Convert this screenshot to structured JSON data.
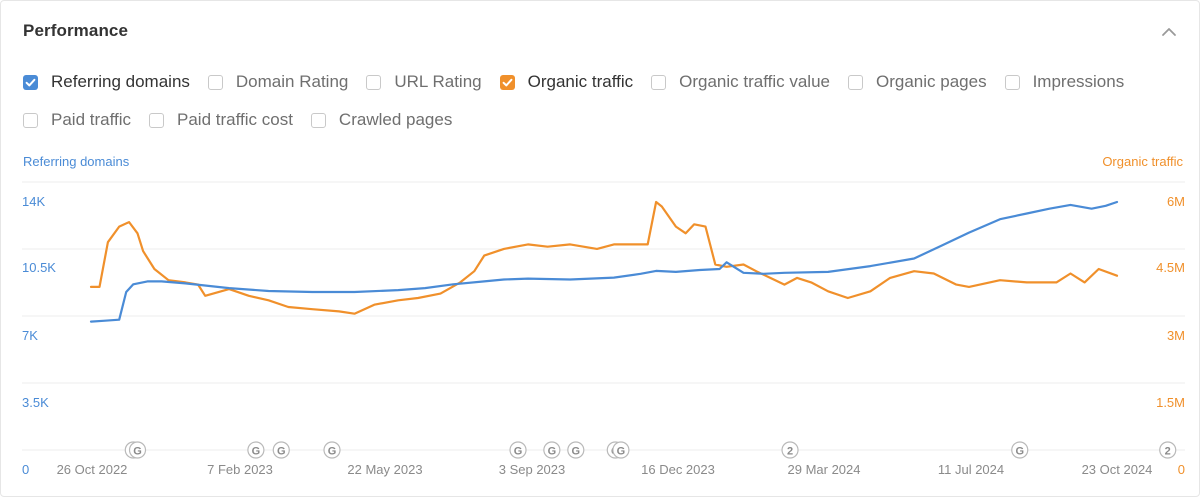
{
  "header": {
    "title": "Performance"
  },
  "metrics_row1": [
    {
      "label": "Referring domains",
      "checked": true,
      "color": "#4a8bd6"
    },
    {
      "label": "Domain Rating",
      "checked": false
    },
    {
      "label": "URL Rating",
      "checked": false
    },
    {
      "label": "Organic traffic",
      "checked": true,
      "color": "#f0902b"
    },
    {
      "label": "Organic traffic value",
      "checked": false
    },
    {
      "label": "Organic pages",
      "checked": false
    },
    {
      "label": "Impressions",
      "checked": false
    }
  ],
  "metrics_row2": [
    {
      "label": "Paid traffic",
      "checked": false
    },
    {
      "label": "Paid traffic cost",
      "checked": false
    },
    {
      "label": "Crawled pages",
      "checked": false
    }
  ],
  "chart_data": {
    "type": "line",
    "grid": true,
    "x_ticks": [
      "26 Oct 2022",
      "7 Feb 2023",
      "22 May 2023",
      "3 Sep 2023",
      "16 Dec 2023",
      "29 Mar 2024",
      "11 Jul 2024",
      "23 Oct 2024"
    ],
    "y_left": {
      "label": "Referring domains",
      "color": "#4a8bd6",
      "ticks": [
        "0",
        "3.5K",
        "7K",
        "10.5K",
        "14K"
      ],
      "range": [
        0,
        14000
      ]
    },
    "y_right": {
      "label": "Organic traffic",
      "color": "#f0902b",
      "ticks": [
        "0",
        "1.5M",
        "3M",
        "4.5M",
        "6M"
      ],
      "range": [
        0,
        6000000
      ]
    },
    "series": [
      {
        "name": "Referring domains",
        "axis": "left",
        "color": "#4a8bd6",
        "points": [
          [
            "2022-10-26",
            7750
          ],
          [
            "2022-11-05",
            7800
          ],
          [
            "2022-11-15",
            7850
          ],
          [
            "2022-11-20",
            9300
          ],
          [
            "2022-11-25",
            9700
          ],
          [
            "2022-12-05",
            9850
          ],
          [
            "2022-12-15",
            9850
          ],
          [
            "2023-01-01",
            9750
          ],
          [
            "2023-02-01",
            9500
          ],
          [
            "2023-03-01",
            9350
          ],
          [
            "2023-04-01",
            9300
          ],
          [
            "2023-05-01",
            9300
          ],
          [
            "2023-06-01",
            9400
          ],
          [
            "2023-06-20",
            9500
          ],
          [
            "2023-07-10",
            9700
          ],
          [
            "2023-08-01",
            9850
          ],
          [
            "2023-08-15",
            9950
          ],
          [
            "2023-09-01",
            10000
          ],
          [
            "2023-10-01",
            9950
          ],
          [
            "2023-11-01",
            10050
          ],
          [
            "2023-11-20",
            10250
          ],
          [
            "2023-12-01",
            10400
          ],
          [
            "2023-12-15",
            10350
          ],
          [
            "2024-01-01",
            10450
          ],
          [
            "2024-01-15",
            10500
          ],
          [
            "2024-01-20",
            10850
          ],
          [
            "2024-02-01",
            10300
          ],
          [
            "2024-02-15",
            10250
          ],
          [
            "2024-03-01",
            10300
          ],
          [
            "2024-04-01",
            10350
          ],
          [
            "2024-05-01",
            10650
          ],
          [
            "2024-06-01",
            11050
          ],
          [
            "2024-06-20",
            11700
          ],
          [
            "2024-07-10",
            12400
          ],
          [
            "2024-08-01",
            13100
          ],
          [
            "2024-08-20",
            13400
          ],
          [
            "2024-09-05",
            13650
          ],
          [
            "2024-09-20",
            13850
          ],
          [
            "2024-10-05",
            13650
          ],
          [
            "2024-10-15",
            13800
          ],
          [
            "2024-10-23",
            14000
          ]
        ]
      },
      {
        "name": "Organic traffic",
        "axis": "right",
        "color": "#f0902b",
        "points": [
          [
            "2022-10-26",
            4100000
          ],
          [
            "2022-11-01",
            4100000
          ],
          [
            "2022-11-07",
            5100000
          ],
          [
            "2022-11-15",
            5450000
          ],
          [
            "2022-11-22",
            5550000
          ],
          [
            "2022-11-28",
            5300000
          ],
          [
            "2022-12-02",
            4900000
          ],
          [
            "2022-12-10",
            4500000
          ],
          [
            "2022-12-20",
            4250000
          ],
          [
            "2023-01-01",
            4200000
          ],
          [
            "2023-01-10",
            4150000
          ],
          [
            "2023-01-15",
            3900000
          ],
          [
            "2023-02-01",
            4050000
          ],
          [
            "2023-02-15",
            3900000
          ],
          [
            "2023-03-01",
            3800000
          ],
          [
            "2023-03-15",
            3650000
          ],
          [
            "2023-04-01",
            3600000
          ],
          [
            "2023-04-20",
            3550000
          ],
          [
            "2023-05-01",
            3500000
          ],
          [
            "2023-05-15",
            3700000
          ],
          [
            "2023-06-01",
            3800000
          ],
          [
            "2023-06-15",
            3850000
          ],
          [
            "2023-07-01",
            3950000
          ],
          [
            "2023-07-15",
            4200000
          ],
          [
            "2023-07-25",
            4450000
          ],
          [
            "2023-08-01",
            4800000
          ],
          [
            "2023-08-15",
            4950000
          ],
          [
            "2023-09-01",
            5050000
          ],
          [
            "2023-09-15",
            5000000
          ],
          [
            "2023-10-01",
            5050000
          ],
          [
            "2023-10-20",
            4950000
          ],
          [
            "2023-11-01",
            5050000
          ],
          [
            "2023-11-15",
            5050000
          ],
          [
            "2023-11-25",
            5050000
          ],
          [
            "2023-12-01",
            6000000
          ],
          [
            "2023-12-05",
            5900000
          ],
          [
            "2023-12-15",
            5450000
          ],
          [
            "2023-12-22",
            5300000
          ],
          [
            "2023-12-28",
            5500000
          ],
          [
            "2024-01-05",
            5450000
          ],
          [
            "2024-01-12",
            4600000
          ],
          [
            "2024-01-20",
            4550000
          ],
          [
            "2024-02-01",
            4600000
          ],
          [
            "2024-02-10",
            4450000
          ],
          [
            "2024-02-20",
            4300000
          ],
          [
            "2024-03-01",
            4150000
          ],
          [
            "2024-03-10",
            4300000
          ],
          [
            "2024-03-20",
            4200000
          ],
          [
            "2024-04-01",
            4000000
          ],
          [
            "2024-04-15",
            3850000
          ],
          [
            "2024-05-01",
            4000000
          ],
          [
            "2024-05-15",
            4300000
          ],
          [
            "2024-06-01",
            4450000
          ],
          [
            "2024-06-15",
            4400000
          ],
          [
            "2024-07-01",
            4150000
          ],
          [
            "2024-07-10",
            4100000
          ],
          [
            "2024-08-01",
            4250000
          ],
          [
            "2024-08-20",
            4200000
          ],
          [
            "2024-09-10",
            4200000
          ],
          [
            "2024-09-20",
            4400000
          ],
          [
            "2024-09-30",
            4200000
          ],
          [
            "2024-10-10",
            4500000
          ],
          [
            "2024-10-23",
            4350000
          ]
        ]
      }
    ],
    "annotations": [
      {
        "date": "2022-11-25",
        "label": "G"
      },
      {
        "date": "2022-11-28",
        "label": "G"
      },
      {
        "date": "2023-02-20",
        "label": "G"
      },
      {
        "date": "2023-03-10",
        "label": "G"
      },
      {
        "date": "2023-04-15",
        "label": "G"
      },
      {
        "date": "2023-08-25",
        "label": "G"
      },
      {
        "date": "2023-09-18",
        "label": "G"
      },
      {
        "date": "2023-10-05",
        "label": "G"
      },
      {
        "date": "2023-11-02",
        "label": "G"
      },
      {
        "date": "2023-11-06",
        "label": "G"
      },
      {
        "date": "2024-03-05",
        "label": "2"
      },
      {
        "date": "2024-08-15",
        "label": "G"
      },
      {
        "date": "2024-11-28",
        "label": "2"
      }
    ]
  }
}
